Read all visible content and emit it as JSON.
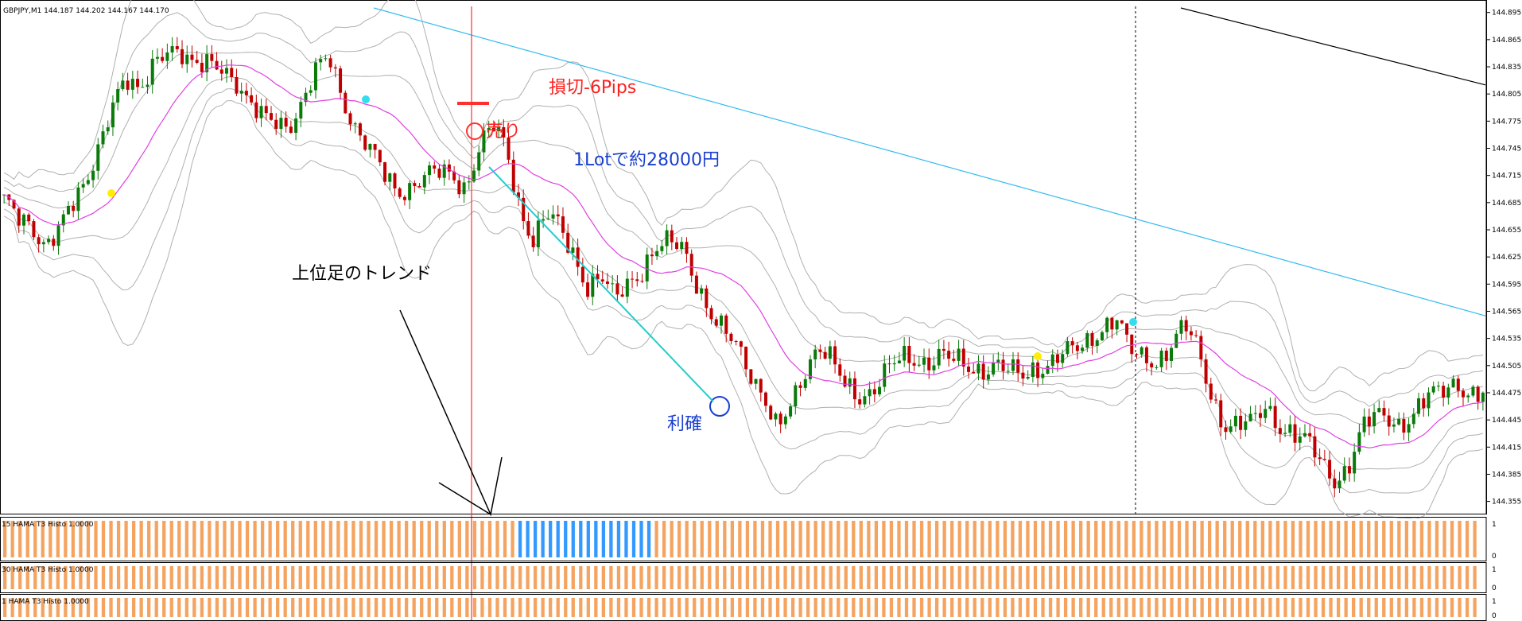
{
  "chart_data": [
    {
      "type": "candlestick",
      "symbol_header": "GBPJPY,M1  144.187 144.202 144.167 144.170",
      "ylim": [
        144.345,
        144.9
      ],
      "y_ticks": [
        "144.895",
        "144.865",
        "144.835",
        "144.805",
        "144.775",
        "144.745",
        "144.715",
        "144.685",
        "144.655",
        "144.625",
        "144.595",
        "144.565",
        "144.535",
        "144.505",
        "144.475",
        "144.445",
        "144.415",
        "144.385",
        "144.355"
      ],
      "close_path": [
        144.69,
        144.665,
        144.655,
        144.64,
        144.66,
        144.68,
        144.7,
        144.75,
        144.8,
        144.82,
        144.8,
        144.84,
        144.86,
        144.85,
        144.83,
        144.84,
        144.84,
        144.82,
        144.79,
        144.78,
        144.78,
        144.77,
        144.79,
        144.83,
        144.85,
        144.8,
        144.76,
        144.74,
        144.72,
        144.7,
        144.7,
        144.71,
        144.72,
        144.72,
        144.7,
        144.74,
        144.77,
        144.75,
        144.68,
        144.64,
        144.67,
        144.66,
        144.63,
        144.59,
        144.6,
        144.58,
        144.6,
        144.61,
        144.63,
        144.64,
        144.64,
        144.6,
        144.56,
        144.54,
        144.53,
        144.5,
        144.47,
        144.43,
        144.46,
        144.5,
        144.53,
        144.51,
        144.48,
        144.47,
        144.48,
        144.5,
        144.51,
        144.51,
        144.51,
        144.52,
        144.51,
        144.5,
        144.5,
        144.51,
        144.5,
        144.49,
        144.5,
        144.51,
        144.52,
        144.52,
        144.53,
        144.55,
        144.56,
        144.52,
        144.51,
        144.51,
        144.53,
        144.55,
        144.52,
        144.47,
        144.44,
        144.44,
        144.44,
        144.46,
        144.44,
        144.43,
        144.42,
        144.4,
        144.38,
        144.39,
        144.43,
        144.45,
        144.45,
        144.44,
        144.45,
        144.47,
        144.48,
        144.49,
        144.47,
        144.47
      ],
      "annotations": [
        "損切-6Pips",
        "売り",
        "1Lotで約28000円",
        "上位足のトレンド",
        "利確"
      ]
    },
    {
      "type": "bar",
      "label": "15  HAMA T3 Histo 1.0000",
      "y_ticks": [
        "1",
        "0"
      ],
      "ylim": [
        0,
        1
      ],
      "bar_count": 195,
      "highlight_bars": [
        68,
        85
      ],
      "colors": {
        "default": "#f4a460",
        "highlight": "#3399ff"
      }
    },
    {
      "type": "bar",
      "label": "30  HAMA T3 Histo 1.0000",
      "y_ticks": [
        "1",
        "0"
      ],
      "ylim": [
        0,
        1
      ],
      "bar_count": 195,
      "highlight_bars": [],
      "colors": {
        "default": "#f4a460",
        "highlight": "#3399ff"
      }
    },
    {
      "type": "bar",
      "label": "1  HAMA T3 Histo 1.0000",
      "y_ticks": [
        "1",
        "0"
      ],
      "ylim": [
        0,
        1
      ],
      "bar_count": 195,
      "highlight_bars": [],
      "colors": {
        "default": "#f4a460",
        "highlight": "#3399ff"
      }
    }
  ],
  "colors": {
    "bull": "#0a7a0a",
    "bear": "#c00000",
    "ma_pink": "#e040e0",
    "ma_blue": "#33bbee",
    "ma_black": "#000000",
    "band": "#b0b0b0",
    "vline": "#ff3030",
    "trend": "#22cccc",
    "annot_red": "#ff2020",
    "annot_blue": "#1a3fd0",
    "annot_black": "#000000"
  },
  "annotations": {
    "stop": "損切-6Pips",
    "sell": "売り",
    "profit_yen": "1Lotで約28000円",
    "trend": "上位足のトレンド",
    "take_profit": "利確"
  }
}
